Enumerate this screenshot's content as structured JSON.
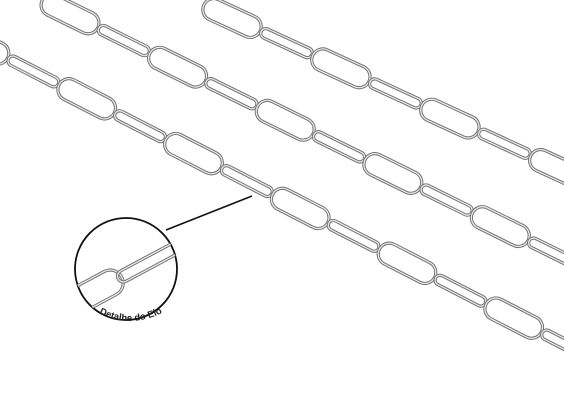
{
  "product": {
    "detail_caption": "Detalhe do Elo"
  },
  "colors": {
    "background": "#ffffff",
    "chain_outer": "#6f6f6f",
    "chain_inner": "#e9e9e9",
    "circle_stroke": "#111111",
    "caption_text": "#222222"
  }
}
